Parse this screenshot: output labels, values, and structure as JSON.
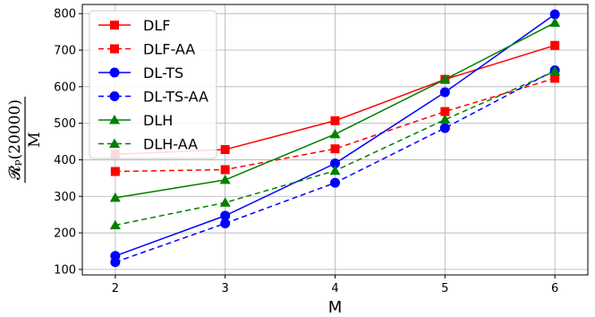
{
  "chart_data": {
    "type": "line",
    "x": [
      2,
      3,
      4,
      5,
      6
    ],
    "xlabel": "M",
    "ylabel": {
      "numerator": "𝓡ₚ(20000)",
      "denominator": "M"
    },
    "xlim": [
      1.7,
      6.3
    ],
    "ylim": [
      85,
      825
    ],
    "xticks": [
      "2",
      "3",
      "4",
      "5",
      "6"
    ],
    "yticks": [
      "100",
      "200",
      "300",
      "400",
      "500",
      "600",
      "700",
      "800"
    ],
    "grid": true,
    "legend_position": "top-left",
    "series": [
      {
        "name": "DLF",
        "color": "#ff0000",
        "linestyle": "solid",
        "marker": "square",
        "values": [
          415,
          428,
          507,
          620,
          713
        ]
      },
      {
        "name": "DLF-AA",
        "color": "#ff0000",
        "linestyle": "dashed",
        "marker": "square",
        "values": [
          368,
          373,
          430,
          532,
          623
        ]
      },
      {
        "name": "DL-TS",
        "color": "#0000ff",
        "linestyle": "solid",
        "marker": "circle",
        "values": [
          137,
          247,
          390,
          585,
          798
        ]
      },
      {
        "name": "DL-TS-AA",
        "color": "#0000ff",
        "linestyle": "dashed",
        "marker": "circle",
        "values": [
          120,
          226,
          337,
          487,
          645
        ]
      },
      {
        "name": "DLH",
        "color": "#008000",
        "linestyle": "solid",
        "marker": "triangle",
        "values": [
          296,
          345,
          470,
          620,
          775
        ]
      },
      {
        "name": "DLH-AA",
        "color": "#008000",
        "linestyle": "dashed",
        "marker": "triangle",
        "values": [
          221,
          283,
          370,
          510,
          642
        ]
      }
    ]
  }
}
